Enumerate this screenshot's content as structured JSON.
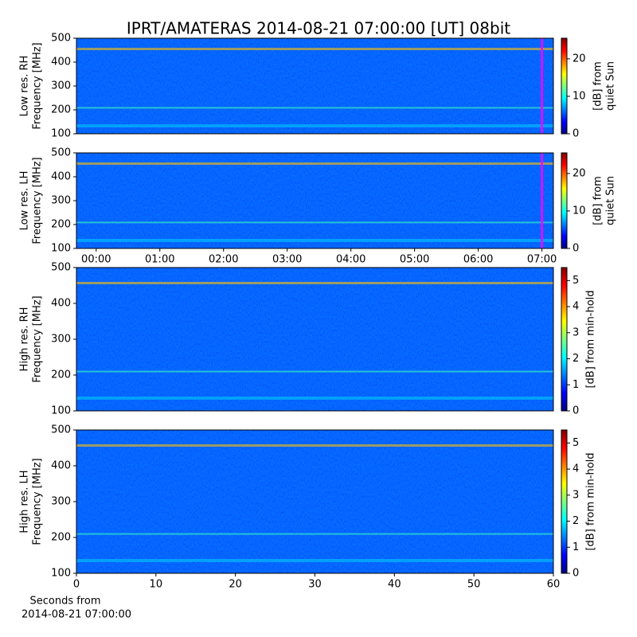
{
  "title": "IPRT/AMATERAS 2014-08-21 07:00:00 [UT]   08bit",
  "chart_data": [
    {
      "type": "heatmap",
      "ylabel": [
        "Low res. RH",
        "Frequency [MHz]"
      ],
      "xlim": [
        -0.31,
        7.18
      ],
      "ylim": [
        100,
        500
      ],
      "yticks": [
        100,
        200,
        300,
        400,
        500
      ],
      "cursor": 7,
      "cursor_color": "#ff00ff",
      "colormap": "jet",
      "colorbar": {
        "label": [
          "[dB] from",
          "quiet Sun"
        ],
        "lim": [
          0,
          25.5
        ],
        "ticks": [
          0,
          10,
          20
        ]
      }
    },
    {
      "type": "heatmap",
      "ylabel": [
        "Low res. LH",
        "Frequency [MHz]"
      ],
      "xlim": [
        -0.31,
        7.18
      ],
      "ylim": [
        100,
        500
      ],
      "yticks": [
        100,
        200,
        300,
        400,
        500
      ],
      "xticks": [
        {
          "value": 0,
          "label": "00:00"
        },
        {
          "value": 1,
          "label": "01:00"
        },
        {
          "value": 2,
          "label": "02:00"
        },
        {
          "value": 3,
          "label": "03:00"
        },
        {
          "value": 4,
          "label": "04:00"
        },
        {
          "value": 5,
          "label": "05:00"
        },
        {
          "value": 6,
          "label": "06:00"
        },
        {
          "value": 7,
          "label": "07:00"
        }
      ],
      "cursor": 7,
      "cursor_color": "#ff00ff",
      "colormap": "jet",
      "colorbar": {
        "label": [
          "[dB] from",
          "quiet Sun"
        ],
        "lim": [
          0,
          25.5
        ],
        "ticks": [
          0,
          10,
          20
        ]
      }
    },
    {
      "type": "heatmap",
      "ylabel": [
        "High res. RH",
        "Frequency [MHz]"
      ],
      "xlim": [
        0,
        60
      ],
      "ylim": [
        100,
        500
      ],
      "yticks": [
        100,
        200,
        300,
        400,
        500
      ],
      "colormap": "jet",
      "colorbar": {
        "label": [
          "[dB] from min-hold"
        ],
        "lim": [
          0,
          5.5
        ],
        "ticks": [
          0,
          1,
          2,
          3,
          4,
          5
        ]
      }
    },
    {
      "type": "heatmap",
      "ylabel": [
        "High res. LH",
        "Frequency [MHz]"
      ],
      "xlim": [
        0,
        60
      ],
      "ylim": [
        100,
        500
      ],
      "yticks": [
        100,
        200,
        300,
        400,
        500
      ],
      "xticks": [
        0,
        10,
        20,
        30,
        40,
        50,
        60
      ],
      "xlabel": [
        "Seconds from",
        "2014-08-21 07:00:00"
      ],
      "colormap": "jet",
      "colorbar": {
        "label": [
          "[dB] from min-hold"
        ],
        "lim": [
          0,
          5.5
        ],
        "ticks": [
          0,
          1,
          2,
          3,
          4,
          5
        ]
      }
    }
  ]
}
